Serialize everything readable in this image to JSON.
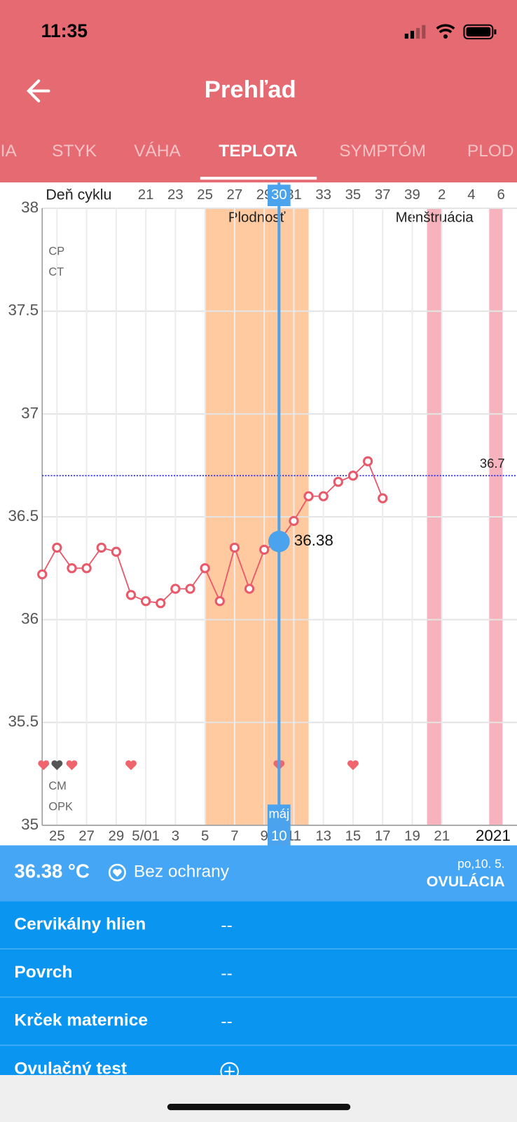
{
  "status_bar": {
    "time": "11:35"
  },
  "header": {
    "title": "Prehľad"
  },
  "tabs": [
    {
      "label": "IA",
      "active": false
    },
    {
      "label": "STYK",
      "active": false
    },
    {
      "label": "VÁHA",
      "active": false
    },
    {
      "label": "TEPLOTA",
      "active": true
    },
    {
      "label": "SYMPTÓM",
      "active": false
    },
    {
      "label": "PLOD",
      "active": false
    }
  ],
  "chart_data": {
    "type": "line",
    "top_axis_label": "Deň cyklu",
    "cycle_days": [
      null,
      null,
      null,
      null,
      null,
      null,
      null,
      21,
      null,
      23,
      null,
      25,
      null,
      27,
      null,
      29,
      30,
      31,
      null,
      33,
      null,
      35,
      null,
      37,
      null,
      39,
      null,
      2,
      null,
      4,
      null,
      6
    ],
    "categories": [
      null,
      "25",
      null,
      "27",
      null,
      "29",
      null,
      "5/01",
      null,
      "3",
      null,
      "5",
      null,
      "7",
      null,
      "9",
      "10",
      "11",
      null,
      "13",
      null,
      "15",
      null,
      "17",
      null,
      "19",
      null,
      "21",
      null,
      null,
      null,
      null
    ],
    "year_label": "2021",
    "series": [
      {
        "name": "Teplota",
        "color": "#e8596a",
        "values": [
          36.22,
          36.35,
          36.25,
          36.25,
          36.35,
          36.33,
          36.12,
          36.09,
          36.08,
          36.15,
          36.15,
          36.25,
          36.09,
          36.35,
          36.15,
          36.34,
          36.38,
          36.48,
          36.6,
          36.6,
          36.67,
          36.7,
          36.77,
          36.59,
          null,
          null,
          null,
          null,
          null,
          null,
          null,
          null
        ]
      }
    ],
    "ylim": [
      35,
      38
    ],
    "yticks": [
      35,
      35.5,
      36,
      36.5,
      37,
      37.5,
      38
    ],
    "grid": true,
    "coverline": 36.7,
    "coverline_color": "#2020ee",
    "selected_index": 16,
    "selected_color": "#4aa3ec",
    "selected_month": "máj",
    "bands": [
      {
        "label": "Plodnosť",
        "from": 11,
        "to": 18,
        "color": "#ffcaa0"
      },
      {
        "label": "Menštruácia",
        "from": 26,
        "to": 27,
        "color": "#f7b3bd"
      },
      {
        "from": 30.2,
        "to": 31.1,
        "color": "#f7b3bd"
      }
    ],
    "row_labels_top": [
      "CP",
      "CT"
    ],
    "row_labels_bottom": [
      "CM",
      "OPK"
    ],
    "hearts": [
      {
        "at": 0,
        "color": "#f0646e"
      },
      {
        "at": 1,
        "color": "#555555"
      },
      {
        "at": 2,
        "color": "#f0646e"
      },
      {
        "at": 6,
        "color": "#f0646e"
      },
      {
        "at": 16,
        "color": "#f0646e"
      },
      {
        "at": 21,
        "color": "#f0646e"
      }
    ]
  },
  "summary": {
    "temperature": "36.38 °C",
    "protection": "Bez ochrany",
    "date": "po,10. 5.",
    "phase": "OVULÁCIA"
  },
  "details": [
    {
      "label": "Cervikálny hlien",
      "value": "--"
    },
    {
      "label": "Povrch",
      "value": "--"
    },
    {
      "label": "Krček maternice",
      "value": "--"
    },
    {
      "label": "Ovulačný test"
    }
  ]
}
